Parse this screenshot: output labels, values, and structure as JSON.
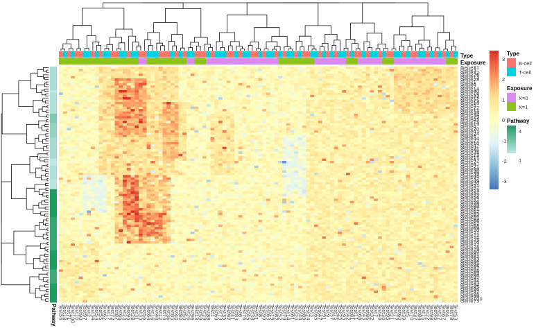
{
  "chart_data": {
    "type": "heatmap",
    "title": "",
    "row_count": 100,
    "col_count": 100,
    "color_scale": {
      "min": -3.4,
      "max": 3.4,
      "ticks": [
        3,
        2,
        1,
        0,
        -1,
        -2,
        -3
      ],
      "colors": [
        "#4575b4",
        "#91bfdb",
        "#e0f3f8",
        "#ffffbf",
        "#fee090",
        "#fc8d59",
        "#d73027"
      ]
    },
    "row_names": [
      "Gene31",
      "Gene3",
      "Gene32",
      "Gene26",
      "Gene13",
      "Gene28",
      "Gene1",
      "Gene6",
      "Gene7",
      "Gene14",
      "Gene40",
      "Gene16",
      "Gene33",
      "Gene12",
      "Gene25",
      "Gene18",
      "Gene5",
      "Gene22",
      "Gene11",
      "Gene38",
      "Gene34",
      "Gene29",
      "Gene45",
      "Gene15",
      "Gene19",
      "Gene4",
      "Gene20",
      "Gene41",
      "Gene24",
      "Gene8",
      "Gene44",
      "Gene27",
      "Gene10",
      "Gene42",
      "Gene9",
      "Gene46",
      "Gene35",
      "Gene23",
      "Gene17",
      "Gene43",
      "Gene2",
      "Gene47",
      "Gene21",
      "Gene30",
      "Gene36",
      "Gene39",
      "Gene48",
      "Gene37",
      "Gene49",
      "Gene50",
      "Gene51",
      "Gene52",
      "Gene53",
      "Gene54",
      "Gene55",
      "Gene56",
      "Gene57",
      "Gene58",
      "Gene59",
      "Gene60",
      "Gene61",
      "Gene62",
      "Gene63",
      "Gene64",
      "Gene65",
      "Gene66",
      "Gene67",
      "Gene68",
      "Gene69",
      "Gene70",
      "Gene71",
      "Gene72",
      "Gene74",
      "Gene75",
      "Gene76",
      "Gene77",
      "Gene78",
      "Gene79",
      "Gene80",
      "Gene81",
      "Gene82",
      "Gene83",
      "Gene84",
      "Gene85",
      "Gene86",
      "Gene87",
      "Gene88",
      "Gene89",
      "Gene90",
      "Gene91",
      "Gene92",
      "Gene93",
      "Gene94",
      "Gene95",
      "Gene96",
      "Gene97",
      "Gene98",
      "Gene99",
      "Gene100",
      "Gene73"
    ],
    "col_names": [
      "Test58",
      "Test18",
      "Test71",
      "Test100",
      "Test10",
      "Test90",
      "Test97",
      "Test2",
      "Test34",
      "Test54",
      "Test55",
      "Test62",
      "Test17",
      "Test72",
      "Test87",
      "Test66",
      "Test23",
      "Test94",
      "Test28",
      "Test31",
      "Test33",
      "Test56",
      "Test64",
      "Test16",
      "Test48",
      "Test12",
      "Test74",
      "Test36",
      "Test85",
      "Test40",
      "Test80",
      "Test50",
      "Test26",
      "Test96",
      "Test13",
      "Test59",
      "Test29",
      "Test88",
      "Test1",
      "Test69",
      "Test73",
      "Test35",
      "Test92",
      "Test41",
      "Test83",
      "Test6",
      "Test76",
      "Test45",
      "Test38",
      "Test51",
      "Test8",
      "Test99",
      "Test63",
      "Test19",
      "Test82",
      "Test52",
      "Test79",
      "Test14",
      "Test61",
      "Test20",
      "Test44",
      "Test89",
      "Test24",
      "Test3",
      "Test65",
      "Test47",
      "Test91",
      "Test9",
      "Test57",
      "Test75",
      "Test25",
      "Test93",
      "Test42",
      "Test81",
      "Test11",
      "Test68",
      "Test43",
      "Test86",
      "Test32",
      "Test7",
      "Test49",
      "Test30",
      "Test95",
      "Test21",
      "Test77",
      "Test60",
      "Test39",
      "Test5",
      "Test70",
      "Test37",
      "Test84",
      "Test15",
      "Test22",
      "Test98",
      "Test46",
      "Test27",
      "Test67",
      "Test4",
      "Test78",
      "Test53"
    ],
    "col_annotations": {
      "Type": {
        "colors": {
          "B-cell": "#f8766d",
          "T-cell": "#00d0e0"
        },
        "pattern": [
          "B-cell",
          "T-cell",
          "B-cell",
          "T-cell",
          "B-cell",
          "B-cell",
          "T-cell",
          "T-cell",
          "B-cell",
          "T-cell",
          "B-cell",
          "T-cell",
          "T-cell",
          "B-cell",
          "B-cell",
          "T-cell",
          "T-cell",
          "B-cell",
          "T-cell",
          "T-cell",
          "B-cell",
          "B-cell",
          "T-cell",
          "T-cell",
          "T-cell",
          "B-cell",
          "B-cell",
          "B-cell",
          "T-cell",
          "B-cell",
          "T-cell",
          "B-cell",
          "T-cell",
          "T-cell",
          "B-cell",
          "B-cell",
          "B-cell",
          "T-cell",
          "B-cell",
          "T-cell",
          "T-cell",
          "T-cell",
          "B-cell",
          "B-cell",
          "T-cell",
          "B-cell",
          "T-cell",
          "T-cell",
          "B-cell",
          "B-cell",
          "T-cell",
          "B-cell",
          "T-cell",
          "T-cell",
          "B-cell",
          "T-cell",
          "B-cell",
          "T-cell",
          "T-cell",
          "B-cell",
          "T-cell",
          "B-cell",
          "B-cell",
          "T-cell",
          "T-cell",
          "B-cell",
          "T-cell",
          "B-cell",
          "T-cell",
          "B-cell",
          "T-cell",
          "T-cell",
          "B-cell",
          "T-cell",
          "B-cell",
          "B-cell",
          "T-cell",
          "B-cell",
          "T-cell",
          "T-cell",
          "B-cell",
          "T-cell",
          "B-cell",
          "B-cell",
          "T-cell",
          "T-cell",
          "B-cell",
          "T-cell",
          "B-cell",
          "B-cell",
          "T-cell",
          "T-cell",
          "B-cell",
          "T-cell",
          "B-cell",
          "T-cell",
          "B-cell",
          "T-cell",
          "B-cell",
          "T-cell"
        ]
      },
      "Exposure": {
        "colors": {
          "X=0": "#da8bf0",
          "X=1": "#8dc21a"
        },
        "segments": [
          {
            "level": "X=1",
            "count": 20
          },
          {
            "level": "X=0",
            "count": 2
          },
          {
            "level": "X=1",
            "count": 10
          },
          {
            "level": "X=0",
            "count": 2
          },
          {
            "level": "X=1",
            "count": 3
          },
          {
            "level": "X=0",
            "count": 18
          },
          {
            "level": "X=1",
            "count": 9
          },
          {
            "level": "X=0",
            "count": 8
          },
          {
            "level": "X=1",
            "count": 3
          },
          {
            "level": "X=0",
            "count": 6
          },
          {
            "level": "X=1",
            "count": 3
          },
          {
            "level": "X=0",
            "count": 13
          },
          {
            "level": "X=1",
            "count": 3
          }
        ]
      }
    },
    "row_annotations": {
      "Pathway": {
        "scale": [
          {
            "value": "4",
            "color": "#1f9c5f"
          },
          {
            "value": "1",
            "color": "#bfe7e3"
          }
        ],
        "segments": [
          {
            "value": 1.4,
            "count": 10
          },
          {
            "value": 1.0,
            "count": 1
          },
          {
            "value": 1.3,
            "count": 9
          },
          {
            "value": 2.2,
            "count": 4
          },
          {
            "value": 1.8,
            "count": 6
          },
          {
            "value": 1.5,
            "count": 9
          },
          {
            "value": 1.0,
            "count": 3
          },
          {
            "value": 1.3,
            "count": 6
          },
          {
            "value": 1.1,
            "count": 4
          },
          {
            "value": 4.0,
            "count": 12
          },
          {
            "value": 3.6,
            "count": 14
          },
          {
            "value": 4.0,
            "count": 8
          },
          {
            "value": 3.4,
            "count": 6
          },
          {
            "value": 4.0,
            "count": 8
          }
        ]
      }
    },
    "blocks": [
      {
        "rows": [
          0,
          46
        ],
        "cols": [
          10,
          30
        ],
        "value": 0.9
      },
      {
        "rows": [
          5,
          30
        ],
        "cols": [
          14,
          22
        ],
        "value": 1.2
      },
      {
        "rows": [
          15,
          40
        ],
        "cols": [
          26,
          32
        ],
        "value": 0.9
      },
      {
        "rows": [
          46,
          75
        ],
        "cols": [
          14,
          28
        ],
        "value": 1.4
      },
      {
        "rows": [
          46,
          68
        ],
        "cols": [
          16,
          20
        ],
        "value": 1.2
      },
      {
        "rows": [
          46,
          62
        ],
        "cols": [
          6,
          12
        ],
        "value": -0.9
      },
      {
        "rows": [
          62,
          72
        ],
        "cols": [
          20,
          26
        ],
        "value": 1.1
      },
      {
        "rows": [
          74,
          100
        ],
        "cols": [
          0,
          10
        ],
        "value": 0.5
      },
      {
        "rows": [
          30,
          55
        ],
        "cols": [
          56,
          62
        ],
        "value": -0.9
      },
      {
        "rows": [
          0,
          100
        ],
        "cols": [
          62,
          100
        ],
        "value": 0.4
      },
      {
        "rows": [
          20,
          46
        ],
        "cols": [
          38,
          44
        ],
        "value": 0.7
      },
      {
        "rows": [
          0,
          20
        ],
        "cols": [
          84,
          100
        ],
        "value": 0.6
      }
    ],
    "annotation_labels": {
      "type": "Type",
      "exposure": "Exposure",
      "pathway": "Pathway"
    },
    "legends": {
      "type_title": "Type",
      "type_items": [
        "B-cell",
        "T-cell"
      ],
      "exposure_title": "Exposure",
      "exposure_items": [
        "X=0",
        "X=1"
      ],
      "pathway_title": "Pathway",
      "pathway_items": [
        "4",
        "1"
      ]
    },
    "legend_position": "right",
    "dendrograms": [
      "top",
      "left"
    ]
  }
}
